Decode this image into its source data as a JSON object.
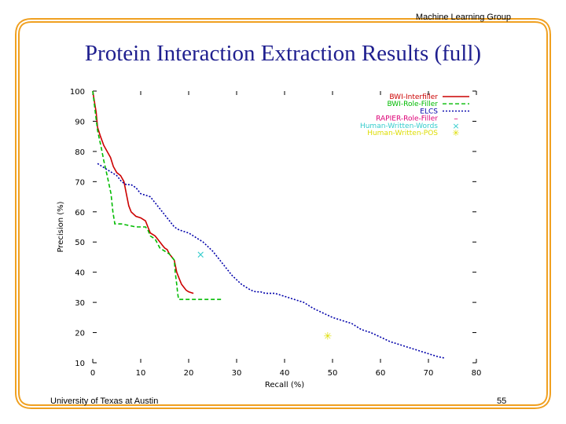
{
  "slide": {
    "header": "Machine Learning Group",
    "title": "Protein Interaction Extraction Results (full)",
    "footer_left": "University of Texas at Austin",
    "page_number": "55",
    "accent_color": "#f0a020"
  },
  "chart_data": {
    "type": "line",
    "title": "",
    "xlabel": "Recall (%)",
    "ylabel": "Precision (%)",
    "xlim": [
      0,
      80
    ],
    "ylim": [
      10,
      100
    ],
    "xticks": [
      0,
      10,
      20,
      30,
      40,
      50,
      60,
      70,
      80
    ],
    "yticks": [
      10,
      20,
      30,
      40,
      50,
      60,
      70,
      80,
      90,
      100
    ],
    "grid": false,
    "legend_position": "top-right",
    "series": [
      {
        "name": "BWI-Interfiller",
        "color": "#cc0000",
        "style": "solid",
        "points": [
          [
            0,
            100
          ],
          [
            0.3,
            97
          ],
          [
            0.7,
            93
          ],
          [
            1,
            88
          ],
          [
            1.6,
            85
          ],
          [
            2.3,
            82
          ],
          [
            3,
            80
          ],
          [
            3.7,
            78
          ],
          [
            4.3,
            75
          ],
          [
            5,
            73
          ],
          [
            5.8,
            72
          ],
          [
            6.5,
            70
          ],
          [
            7,
            66
          ],
          [
            7.5,
            62
          ],
          [
            8,
            60
          ],
          [
            9,
            58.5
          ],
          [
            10,
            58
          ],
          [
            11,
            57
          ],
          [
            11.5,
            55
          ],
          [
            12,
            53
          ],
          [
            13,
            52
          ],
          [
            13.5,
            51
          ],
          [
            14,
            50
          ],
          [
            14.5,
            49
          ],
          [
            15,
            48
          ],
          [
            15.5,
            47.5
          ],
          [
            16,
            46
          ],
          [
            16.5,
            45
          ],
          [
            17,
            44
          ],
          [
            17.5,
            40
          ],
          [
            18,
            38
          ],
          [
            18.5,
            36
          ],
          [
            19,
            35
          ],
          [
            19.5,
            34
          ],
          [
            20,
            33.5
          ],
          [
            21,
            33
          ]
        ]
      },
      {
        "name": "BWI-Role-Filler",
        "color": "#00bb00",
        "style": "dashed",
        "points": [
          [
            0,
            100
          ],
          [
            0.6,
            92
          ],
          [
            1,
            87
          ],
          [
            1.4,
            84
          ],
          [
            1.8,
            81
          ],
          [
            2.3,
            77
          ],
          [
            3,
            72
          ],
          [
            3.8,
            66
          ],
          [
            4.2,
            60
          ],
          [
            4.6,
            56
          ],
          [
            6,
            56
          ],
          [
            9,
            55
          ],
          [
            11,
            55
          ],
          [
            11.5,
            54
          ],
          [
            12,
            52
          ],
          [
            13,
            51
          ],
          [
            14,
            48
          ],
          [
            15,
            47
          ],
          [
            16,
            46
          ],
          [
            16.5,
            45
          ],
          [
            17,
            44
          ],
          [
            17.2,
            40
          ],
          [
            17.5,
            36
          ],
          [
            17.7,
            33
          ],
          [
            17.9,
            31
          ],
          [
            27,
            31
          ]
        ]
      },
      {
        "name": "ELCS",
        "color": "#0000aa",
        "style": "dotted",
        "points": [
          [
            1,
            76
          ],
          [
            3,
            74
          ],
          [
            5,
            72
          ],
          [
            6,
            70
          ],
          [
            7,
            69
          ],
          [
            8,
            69
          ],
          [
            9,
            68
          ],
          [
            10,
            66
          ],
          [
            11,
            65.5
          ],
          [
            12,
            65
          ],
          [
            13,
            63
          ],
          [
            14,
            61
          ],
          [
            15,
            59
          ],
          [
            16,
            57
          ],
          [
            17,
            55
          ],
          [
            18,
            54
          ],
          [
            19,
            53.5
          ],
          [
            20,
            53
          ],
          [
            21,
            52
          ],
          [
            22,
            51
          ],
          [
            23,
            50
          ],
          [
            24,
            48.5
          ],
          [
            25,
            47
          ],
          [
            26,
            45
          ],
          [
            27,
            43
          ],
          [
            28,
            41
          ],
          [
            29,
            39
          ],
          [
            30,
            37.5
          ],
          [
            31,
            36
          ],
          [
            32,
            35
          ],
          [
            33,
            34
          ],
          [
            34,
            33.5
          ],
          [
            35,
            33.5
          ],
          [
            36,
            33
          ],
          [
            38,
            33
          ],
          [
            40,
            32
          ],
          [
            42,
            31
          ],
          [
            44,
            30
          ],
          [
            46,
            28
          ],
          [
            48,
            26.5
          ],
          [
            50,
            25
          ],
          [
            52,
            24
          ],
          [
            54,
            23
          ],
          [
            56,
            21
          ],
          [
            58,
            20
          ],
          [
            60,
            18.5
          ],
          [
            62,
            17
          ],
          [
            64,
            16
          ],
          [
            66,
            15
          ],
          [
            68,
            14
          ],
          [
            70,
            13
          ],
          [
            72,
            12
          ],
          [
            73.5,
            11.5
          ]
        ]
      },
      {
        "name": "RAPIER-Role-Filler",
        "color": "#dd0077",
        "style": "marker",
        "marker": "–",
        "points": []
      },
      {
        "name": "Human-Written-Words",
        "color": "#33cccc",
        "style": "marker",
        "marker": "×",
        "points": [
          [
            22.5,
            46
          ]
        ]
      },
      {
        "name": "Human-Written-POS",
        "color": "#dddd00",
        "style": "marker",
        "marker": "✳",
        "points": [
          [
            49,
            19
          ]
        ]
      }
    ]
  }
}
